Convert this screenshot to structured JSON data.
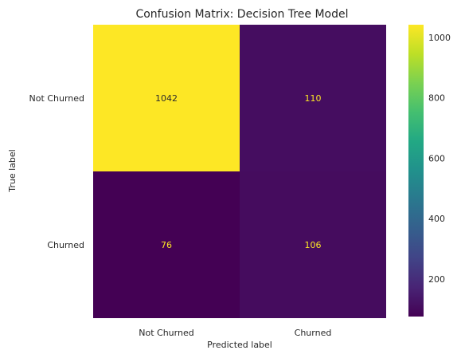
{
  "chart_data": {
    "type": "heatmap",
    "title": "Confusion Matrix: Decision Tree Model",
    "xlabel": "Predicted label",
    "ylabel": "True label",
    "x_categories": [
      "Not Churned",
      "Churned"
    ],
    "y_categories": [
      "Not Churned",
      "Churned"
    ],
    "values": [
      [
        1042,
        110
      ],
      [
        76,
        106
      ]
    ],
    "colormap": "viridis",
    "colorbar": {
      "min": 76,
      "max": 1042,
      "ticks": [
        200,
        400,
        600,
        800,
        1000
      ]
    },
    "cell_text_colors": {
      "on_light": "#2b2b2b",
      "on_dark": "#fde725"
    },
    "grid": false
  }
}
